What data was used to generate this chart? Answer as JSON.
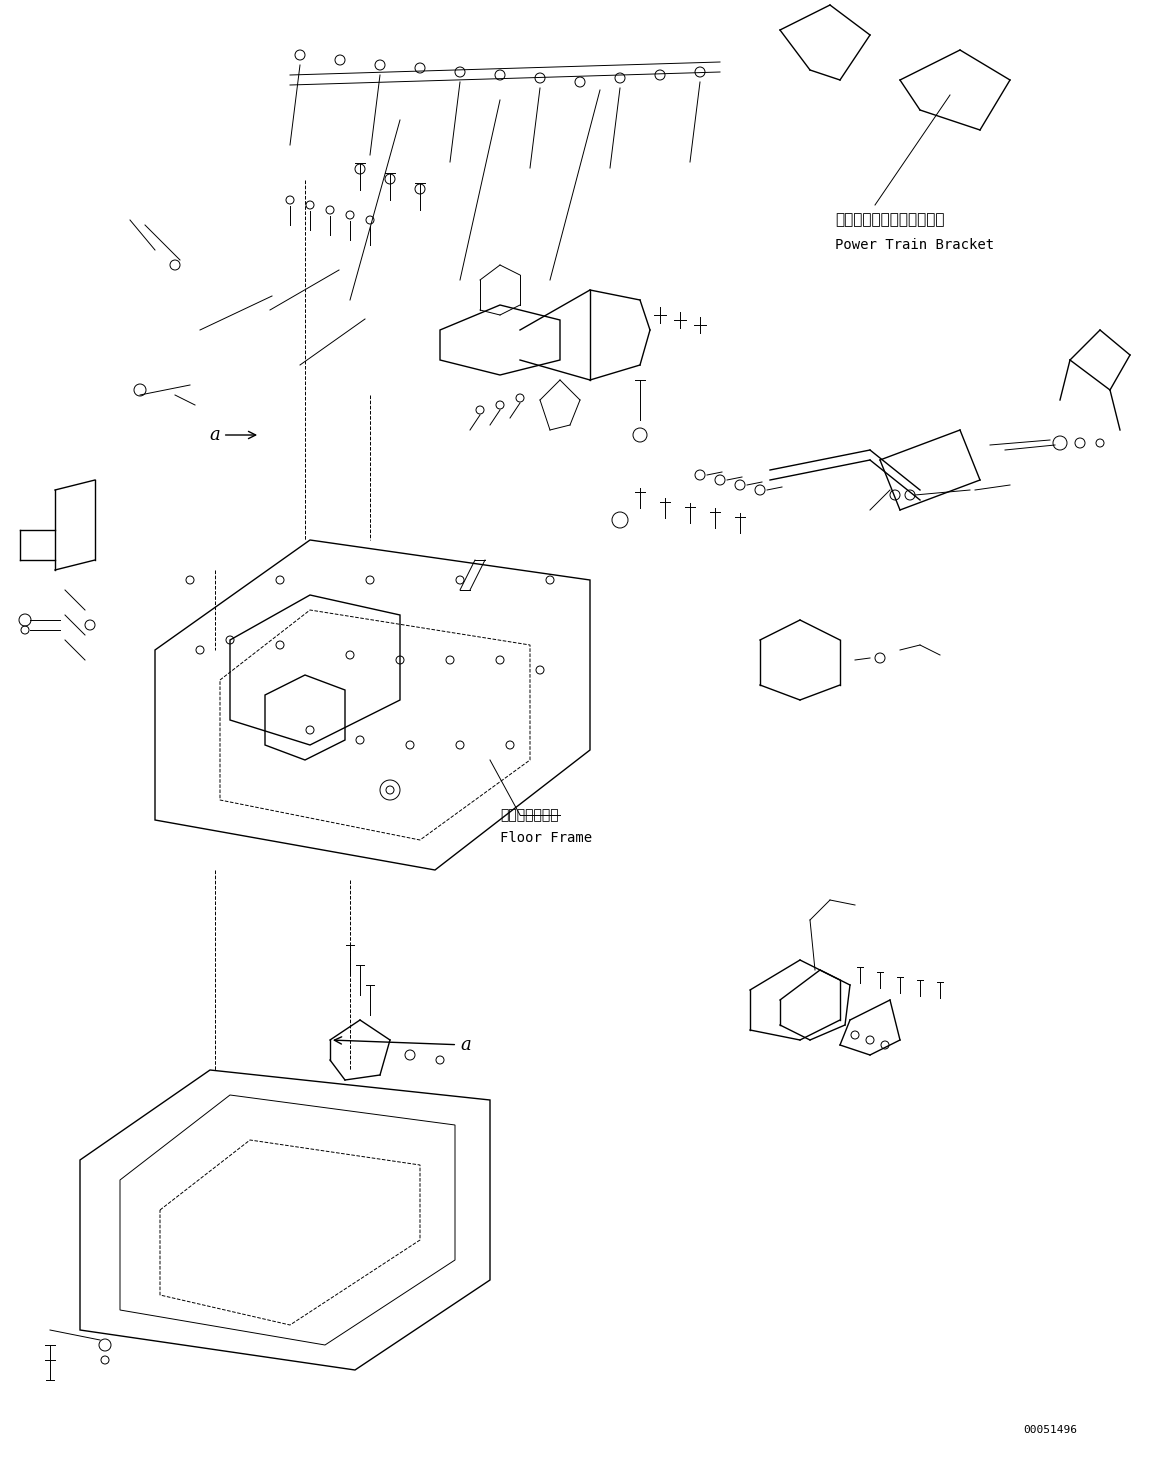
{
  "bg_color": "#ffffff",
  "line_color": "#000000",
  "fig_width": 11.59,
  "fig_height": 14.59,
  "dpi": 100,
  "label_power_train_jp": "パワートレインブラケット",
  "label_power_train_en": "Power Train Bracket",
  "label_floor_frame_jp": "フロアフレーム",
  "label_floor_frame_en": "Floor Frame",
  "label_a1": "a",
  "label_a2": "a",
  "part_number": "00051496",
  "text_color": "#000000"
}
